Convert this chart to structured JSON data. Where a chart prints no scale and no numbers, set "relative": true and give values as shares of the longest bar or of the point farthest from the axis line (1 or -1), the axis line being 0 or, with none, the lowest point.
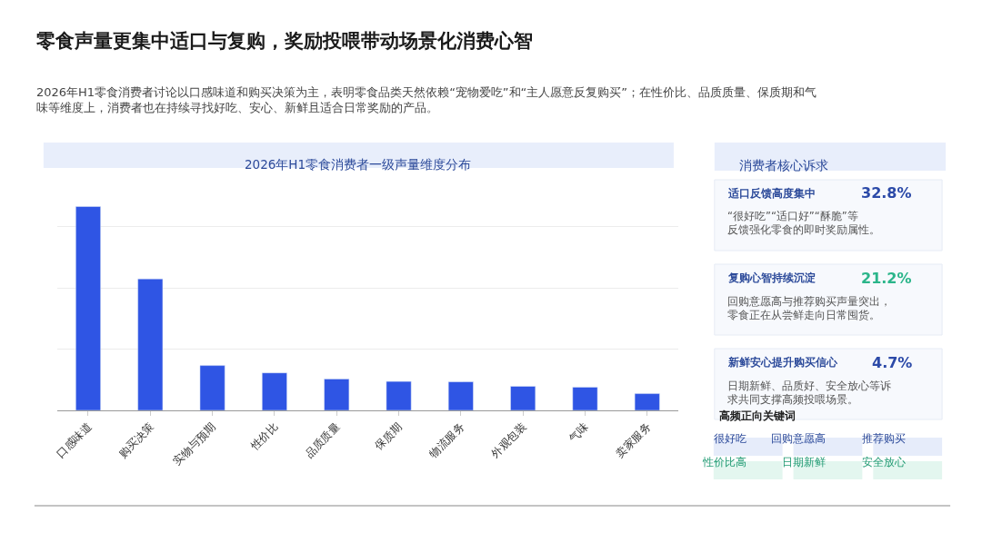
{
  "chart_data": [
    {
      "type": "other",
      "title": "零食声量更集中适口与复购，奖励投喂带动场景化消费心智",
      "subtitle": "2026年H1零食消费者讨论以口感味道和购买决策为主，表明零食品类天然依赖“宠物爱吃”和“主人愿意反复购买”；在性价比、品质质量、保质期和气味等维度上，消费者也在持续寻找好吃、安心、新鲜且适合日常奖励的产品。"
    },
    {
      "type": "bar",
      "title": "2026年H1零食消费者一级声量维度分布",
      "relative": true,
      "grid": "y",
      "color": "#2f55e4",
      "categories": [
        "口感味道",
        "购买决策",
        "实物与预期",
        "性价比",
        "品质质量",
        "保质期",
        "物流服务",
        "外观包装",
        "气味",
        "卖家服务"
      ],
      "values": [
        1,
        0.645,
        0.22,
        0.184,
        0.154,
        0.142,
        0.14,
        0.118,
        0.114,
        0.082
      ]
    },
    {
      "type": "other",
      "title": "消费者核心诉求",
      "annotations": [
        "适口反馈高度集中",
        "32.8%",
        "“很好吃”“适口好”“酥脆”等反馈强化零食的即时奖励属性。",
        "复购心智持续沉淀",
        "21.2%",
        "回购意愿高与推荐购买声量突出，零食正在从尝鲜走向日常囤货。",
        "新鲜安心提升购买信心",
        "4.7%",
        "日期新鲜、品质好、安全放心等诉求共同支撑高频投喂场景。",
        "高频正向关键词",
        "很好吃",
        "回购意愿高",
        "推荐购买",
        "性价比高",
        "日期新鲜",
        "安全放心"
      ]
    }
  ]
}
